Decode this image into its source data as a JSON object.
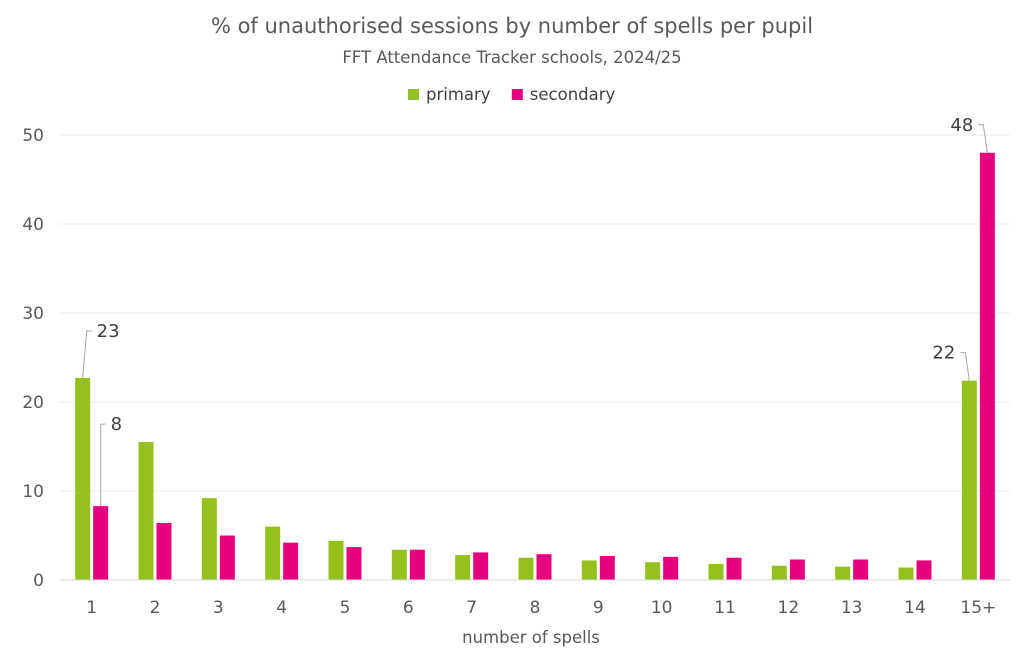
{
  "chart_data": {
    "type": "bar",
    "title": "% of unauthorised sessions by number of spells per pupil",
    "subtitle": "FFT Attendance Tracker schools, 2024/25",
    "xlabel": "number of spells",
    "ylabel": "",
    "ylim": [
      0,
      50
    ],
    "yticks": [
      "0",
      "10",
      "20",
      "30",
      "40",
      "50"
    ],
    "grid": true,
    "legend_position": "top-center",
    "categories": [
      "1",
      "2",
      "3",
      "4",
      "5",
      "6",
      "7",
      "8",
      "9",
      "10",
      "11",
      "12",
      "13",
      "14",
      "15+"
    ],
    "series": [
      {
        "name": "primary",
        "color": "#95c11f",
        "values": [
          22.7,
          15.5,
          9.2,
          6.0,
          4.4,
          3.4,
          2.8,
          2.5,
          2.2,
          2.0,
          1.8,
          1.6,
          1.5,
          1.4,
          22.4
        ]
      },
      {
        "name": "secondary",
        "color": "#e6007e",
        "values": [
          8.3,
          6.4,
          5.0,
          4.2,
          3.7,
          3.4,
          3.1,
          2.9,
          2.7,
          2.6,
          2.5,
          2.3,
          2.3,
          2.2,
          48.0
        ]
      }
    ],
    "annotations": [
      {
        "series": 0,
        "index": 0,
        "text": "23"
      },
      {
        "series": 1,
        "index": 0,
        "text": "8"
      },
      {
        "series": 0,
        "index": 14,
        "text": "22"
      },
      {
        "series": 1,
        "index": 14,
        "text": "48"
      }
    ]
  }
}
